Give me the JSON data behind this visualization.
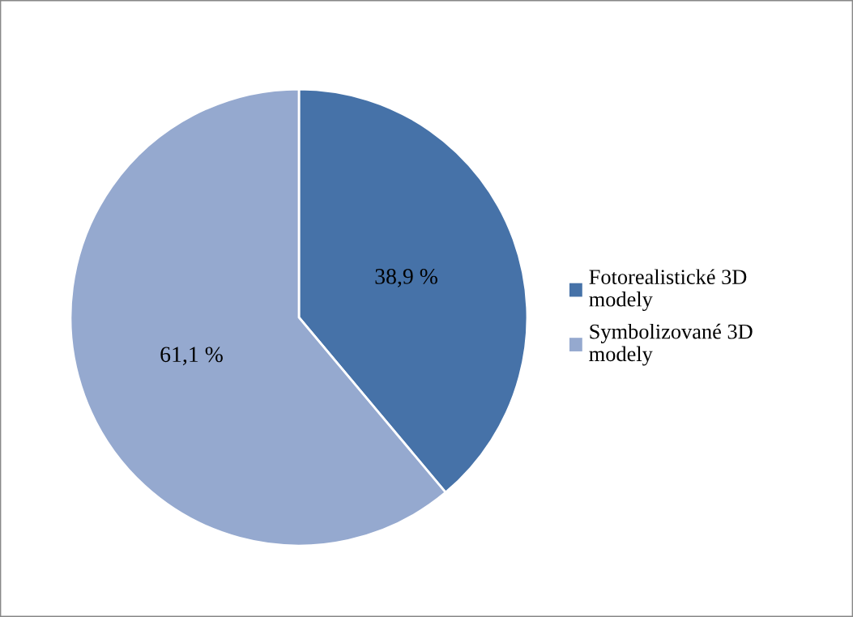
{
  "chart_data": {
    "type": "pie",
    "categories": [
      "Fotorealistické 3D modely",
      "Symbolizované 3D modely"
    ],
    "values": [
      38.9,
      61.1
    ],
    "colors": [
      "#4672a8",
      "#95a9cf"
    ],
    "value_labels": [
      "38,9 %",
      "61,1 %"
    ],
    "legend": "right"
  }
}
